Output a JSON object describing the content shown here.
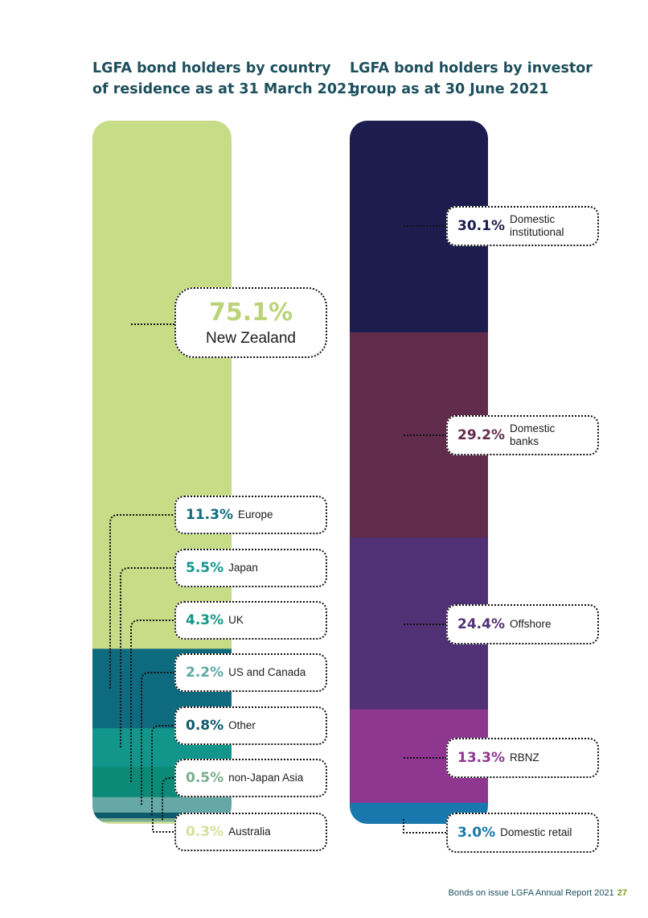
{
  "chart_data": [
    {
      "type": "stacked-bar",
      "title": "LGFA bond holders by country of residence as at 31 March 2021",
      "unit": "%",
      "segments": [
        {
          "label": "New Zealand",
          "value": 75.1,
          "display": "75.1%",
          "color": "#c7dc86",
          "label_color": "#bdd37a"
        },
        {
          "label": "Europe",
          "value": 11.3,
          "display": "11.3%",
          "color": "#0e6a7e",
          "label_color": "#0e6a7e"
        },
        {
          "label": "Japan",
          "value": 5.5,
          "display": "5.5%",
          "color": "#12968c",
          "label_color": "#12968c"
        },
        {
          "label": "UK",
          "value": 4.3,
          "display": "4.3%",
          "color": "#0b8a78",
          "label_color": "#129686"
        },
        {
          "label": "US and Canada",
          "value": 2.2,
          "display": "2.2%",
          "color": "#66a8a6",
          "label_color": "#5fa8a4"
        },
        {
          "label": "Other",
          "value": 0.8,
          "display": "0.8%",
          "color": "#0e5a6a",
          "label_color": "#0e5a6a"
        },
        {
          "label": "non-Japan Asia",
          "value": 0.5,
          "display": "0.5%",
          "color": "#7aad8e",
          "label_color": "#7aad8e"
        },
        {
          "label": "Australia",
          "value": 0.3,
          "display": "0.3%",
          "color": "#d3e29a",
          "label_color": "#d3e29a"
        }
      ]
    },
    {
      "type": "stacked-bar",
      "title": "LGFA bond holders by investor group as at 30 June 2021",
      "unit": "%",
      "segments": [
        {
          "label": "Domestic\ninstitutional",
          "value": 30.1,
          "display": "30.1%",
          "color": "#1c1d4e",
          "label_color": "#1c1d4e"
        },
        {
          "label": "Domestic\nbanks",
          "value": 29.2,
          "display": "29.2%",
          "color": "#612c4c",
          "label_color": "#612c4c"
        },
        {
          "label": "Offshore",
          "value": 24.4,
          "display": "24.4%",
          "color": "#503175",
          "label_color": "#503175"
        },
        {
          "label": "RBNZ",
          "value": 13.3,
          "display": "13.3%",
          "color": "#8e3690",
          "label_color": "#8e3690"
        },
        {
          "label": "Domestic retail",
          "value": 3.0,
          "display": "3.0%",
          "color": "#1878ad",
          "label_color": "#1878ad"
        }
      ]
    }
  ],
  "headings": {
    "left": [
      "LGFA bond holders by country",
      "of residence as at 31 March 2021"
    ],
    "right": [
      "LGFA bond holders by investor",
      "group as at 30 June 2021"
    ]
  },
  "footer": {
    "text": "Bonds on issue LGFA Annual Report 2021",
    "page": "27"
  }
}
